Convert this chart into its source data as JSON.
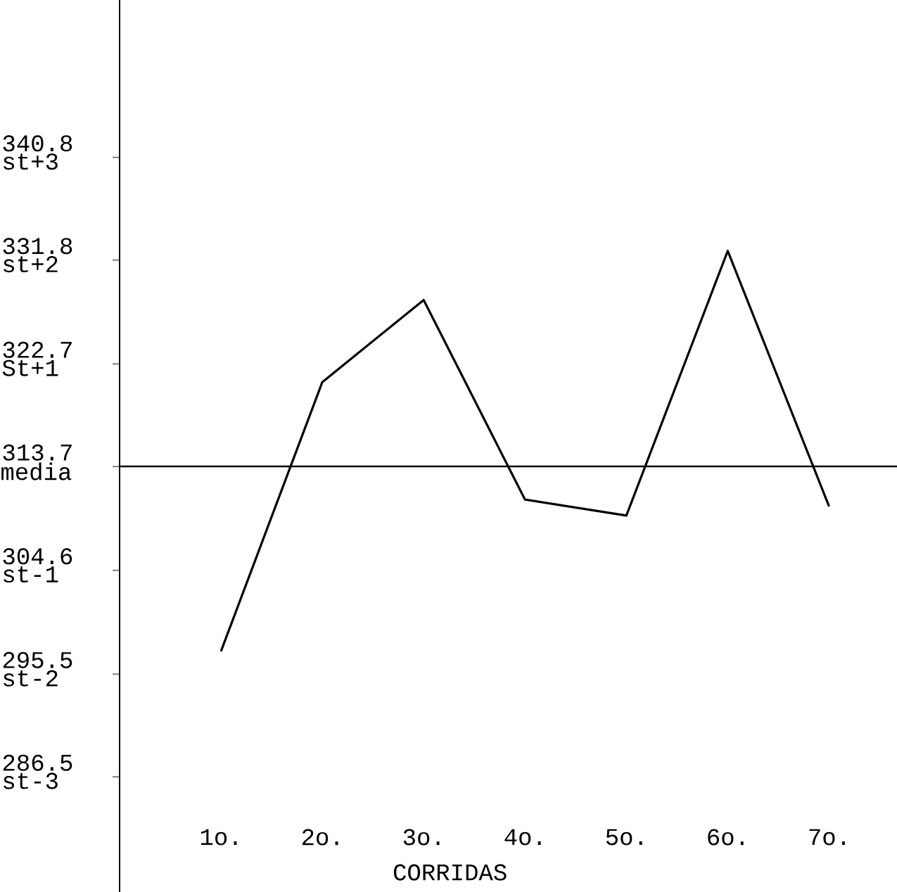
{
  "chart_data": {
    "type": "line",
    "xlabel": "CORRIDAS",
    "categories": [
      "1o.",
      "2o.",
      "3o.",
      "4o.",
      "5o.",
      "6o.",
      "7o."
    ],
    "values": [
      297.5,
      321.1,
      328.3,
      310.8,
      309.4,
      332.6,
      310.2
    ],
    "color": "#000000",
    "line_style": "solid",
    "grid": false,
    "ylim": [
      276.4,
      354.6
    ],
    "yticks": [
      340.8,
      331.8,
      322.7,
      313.7,
      304.6,
      295.5,
      286.5
    ],
    "ref_lines": [
      {
        "axis": "y",
        "value": 313.7,
        "label": "media"
      }
    ],
    "annotations": [
      "st+3",
      "st+2",
      "St+1",
      "st-1",
      "st-2",
      "st-3"
    ]
  }
}
